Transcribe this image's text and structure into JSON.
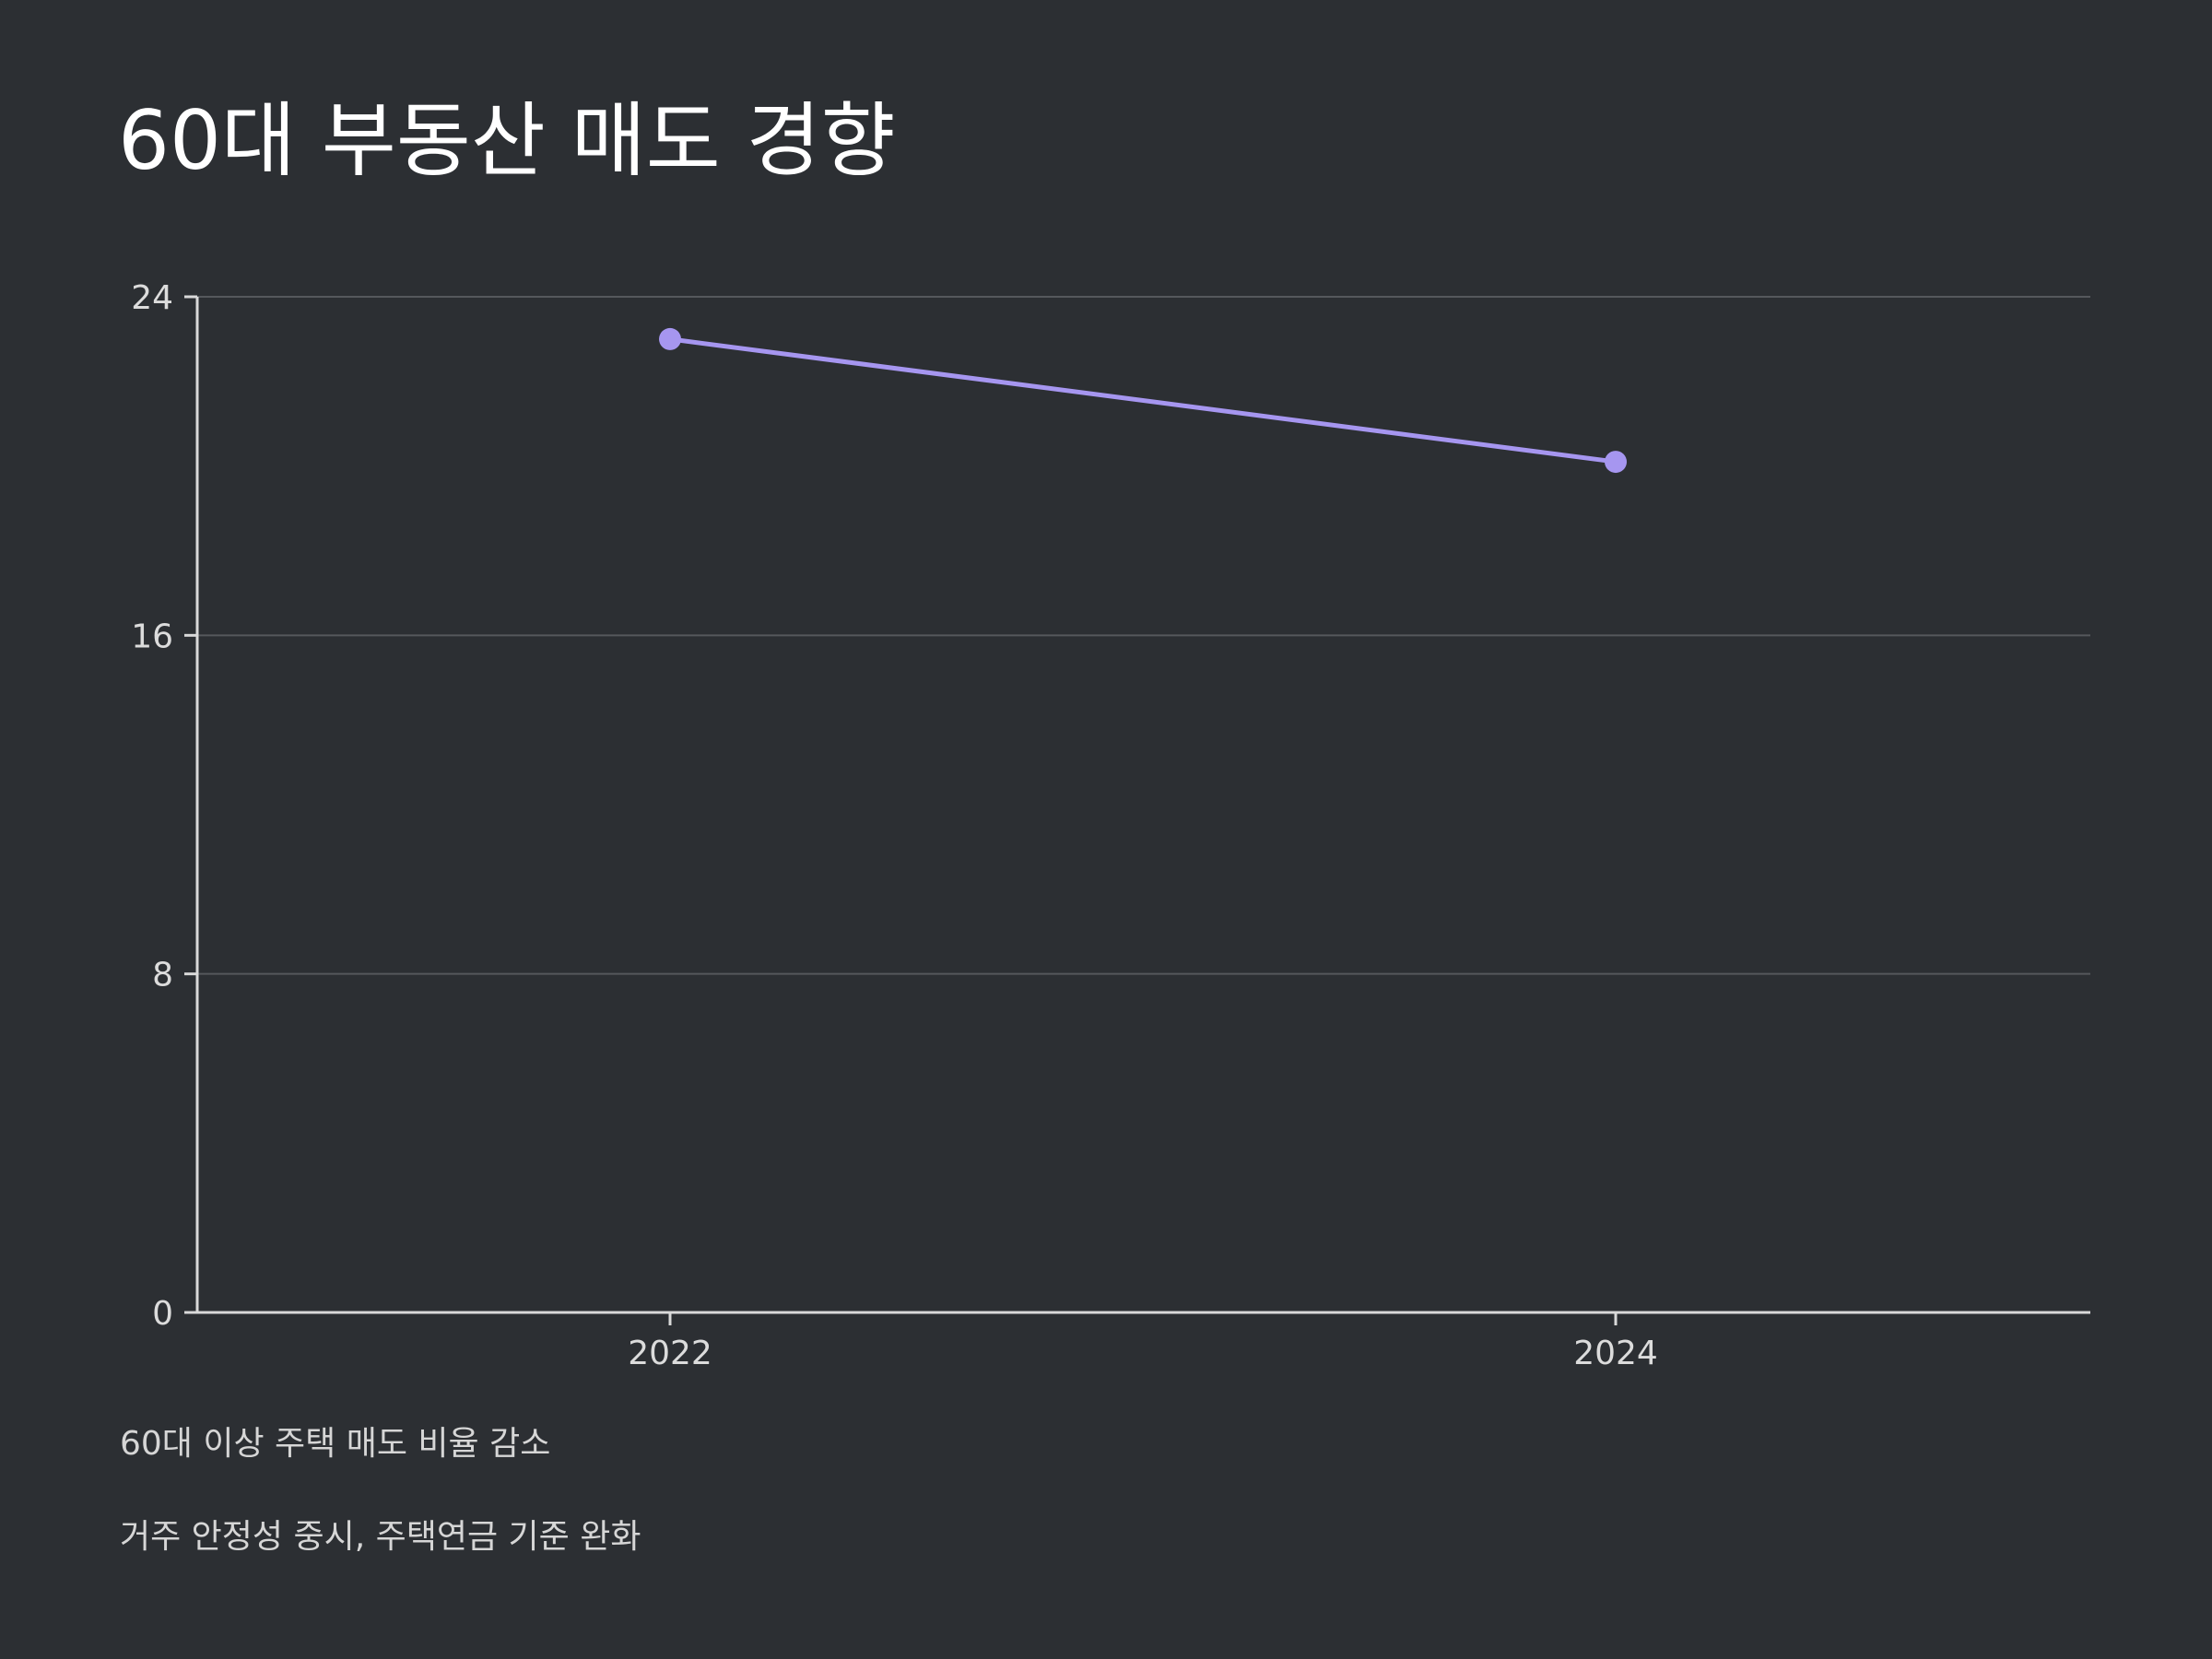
{
  "title": "60대 부동산 매도 경향",
  "notes": [
    "60대 이상 주택 매도 비율 감소",
    "거주 안정성 중시, 주택연금 기준 완화"
  ],
  "colors": {
    "background": "#2c2f33",
    "series": "#a696f0",
    "axis": "#d9d9d9",
    "grid": "#55585c",
    "tick_label": "#dcdcdc"
  },
  "chart_data": {
    "type": "line",
    "x": [
      "2022",
      "2024"
    ],
    "series": [
      {
        "values": [
          23,
          20.1
        ]
      }
    ],
    "ylim": [
      0,
      24
    ],
    "yticks": [
      0,
      8,
      16,
      24
    ],
    "grid": true,
    "legend": "none",
    "xlabel": "",
    "ylabel": ""
  }
}
